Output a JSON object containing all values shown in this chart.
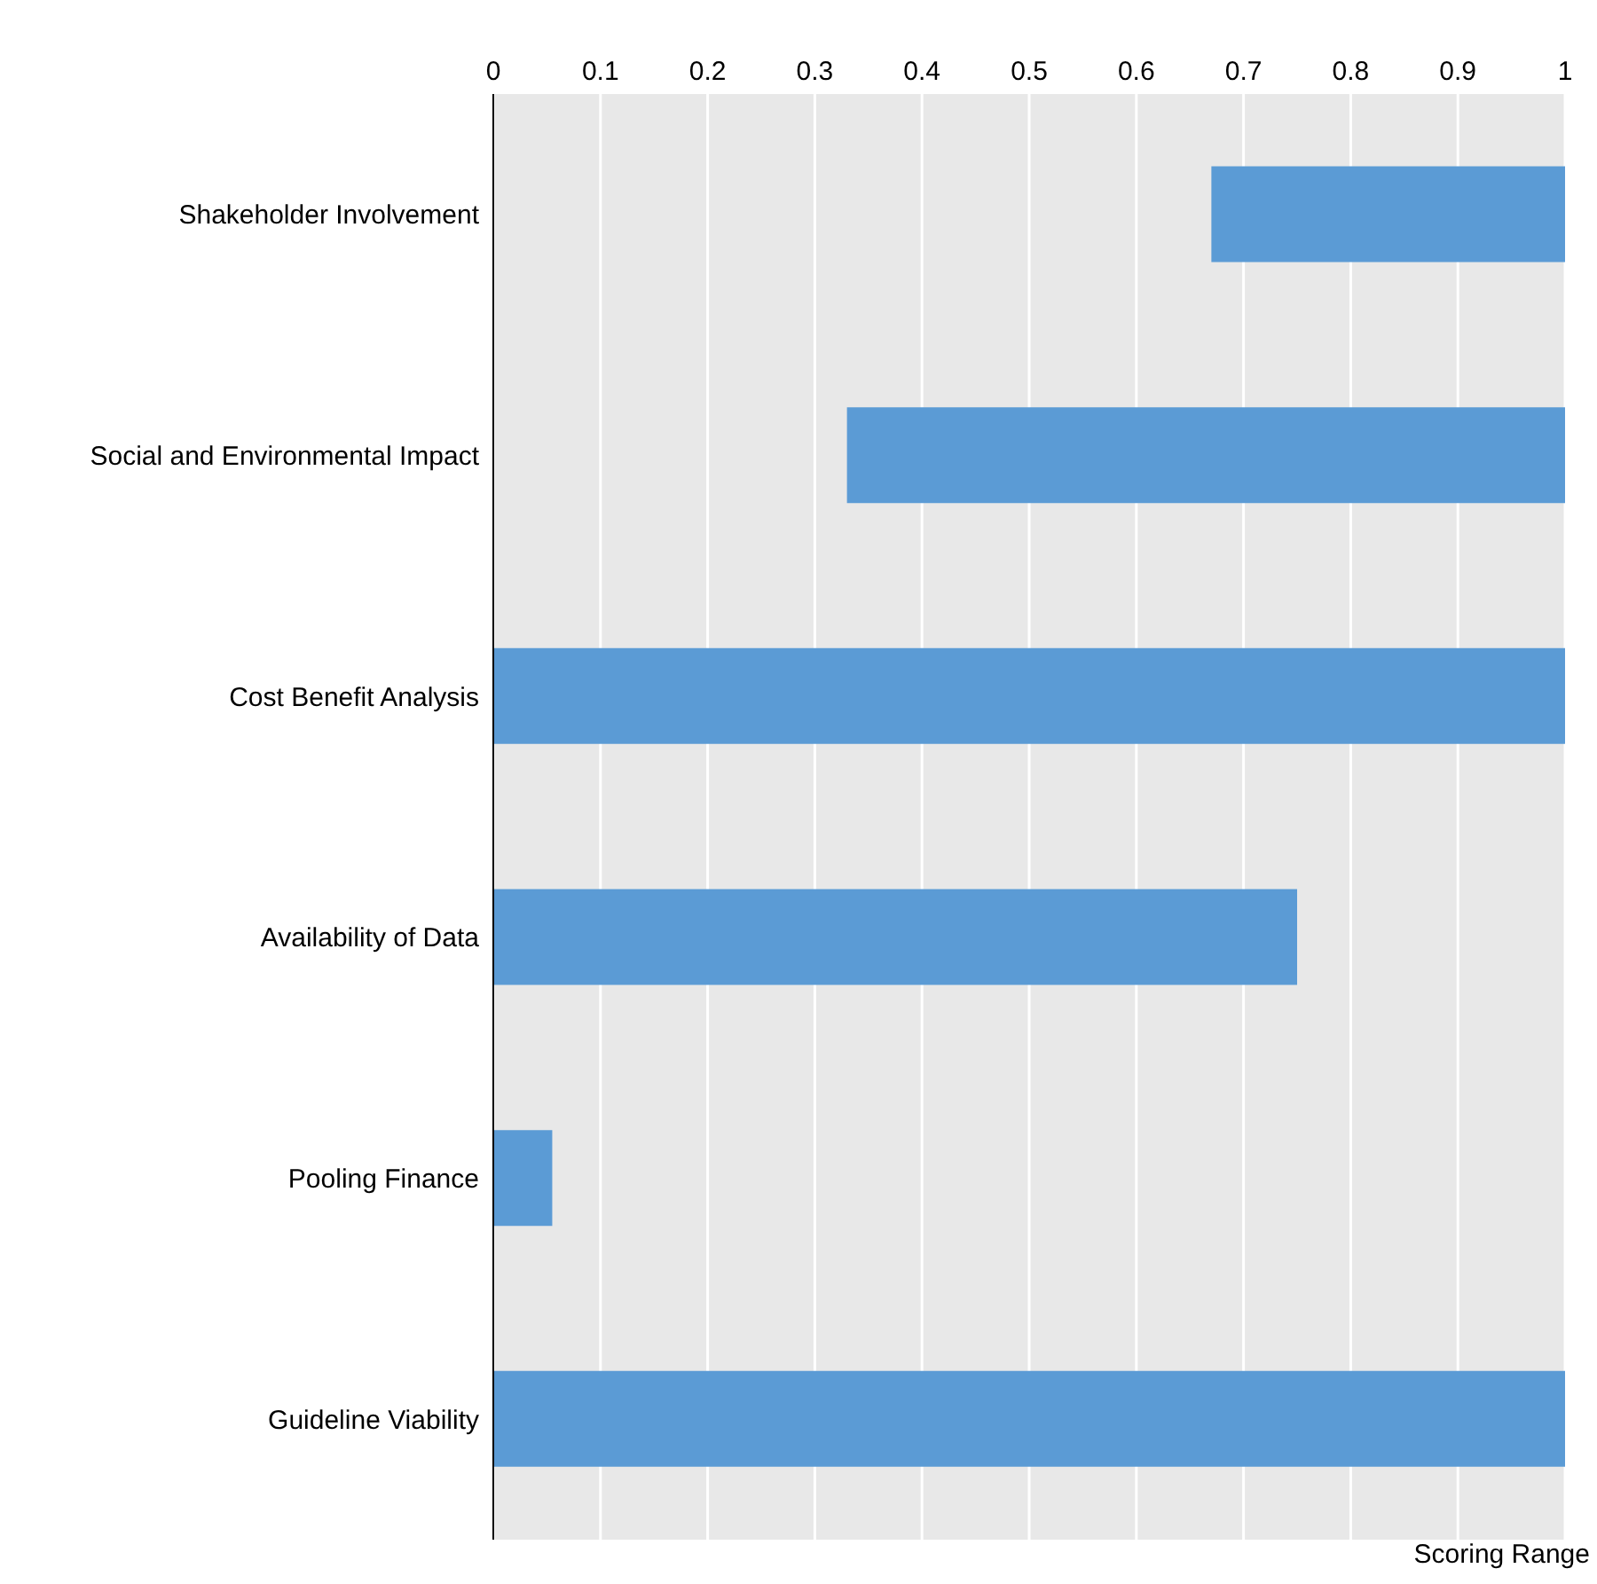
{
  "chart_data": {
    "type": "bar",
    "orientation": "horizontal",
    "xlabel": "Scoring Range",
    "categories": [
      "Shakeholder Involvement",
      "Social and Environmental Impact",
      "Cost Benefit Analysis",
      "Availability of Data",
      "Pooling Finance",
      "Guideline Viability"
    ],
    "base": [
      0.67,
      0.33,
      0,
      0,
      0,
      0
    ],
    "values": [
      0.33,
      0.67,
      1,
      0.75,
      0.055,
      1
    ],
    "color": "#5b9bd5",
    "xlim": [
      0,
      1
    ],
    "xticks": [
      0,
      0.1,
      0.2,
      0.3,
      0.4,
      0.5,
      0.6,
      0.7,
      0.8,
      0.9,
      1
    ],
    "grid": "x"
  }
}
